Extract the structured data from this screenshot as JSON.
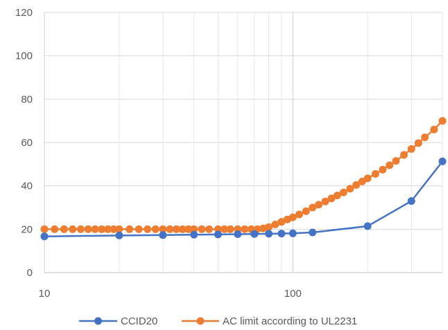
{
  "chart_data": {
    "type": "line",
    "xscale": "log",
    "xlim": [
      10,
      400
    ],
    "ylim": [
      0,
      120
    ],
    "yticks": [
      0,
      20,
      40,
      60,
      80,
      100,
      120
    ],
    "xticks": [
      {
        "value": 10,
        "label": "10"
      },
      {
        "value": 100,
        "label": "100"
      }
    ],
    "grid": true,
    "legend_position": "bottom",
    "title": "",
    "xlabel": "",
    "ylabel": "",
    "series": [
      {
        "name": "CCID20",
        "color": "#4472C4",
        "x": [
          10,
          20,
          30,
          40,
          50,
          60,
          70,
          80,
          90,
          100,
          120,
          200,
          300,
          400
        ],
        "y": [
          16.7,
          17.1,
          17.3,
          17.5,
          17.6,
          17.7,
          17.8,
          17.9,
          18.0,
          18.1,
          18.5,
          21.4,
          33.0,
          51.3
        ]
      },
      {
        "name": "AC limit according to UL2231",
        "color": "#ED7D31",
        "x": [
          10,
          11,
          12,
          13,
          14,
          15,
          16,
          17,
          18,
          19,
          20,
          22,
          24,
          26,
          28,
          30,
          32,
          34,
          36,
          38,
          40,
          43,
          46,
          50,
          53,
          56,
          60,
          64,
          68,
          72,
          76,
          80,
          85,
          90,
          95,
          100,
          106,
          113,
          120,
          127,
          135,
          143,
          151,
          160,
          170,
          180,
          190,
          200,
          215,
          230,
          245,
          260,
          280,
          300,
          320,
          340,
          370,
          400
        ],
        "y": [
          20,
          20,
          20,
          20,
          20,
          20,
          20,
          20,
          20,
          20,
          20,
          20,
          20,
          20,
          20,
          20,
          20,
          20,
          20,
          20,
          20,
          20,
          20,
          20,
          20,
          20,
          20,
          20,
          20,
          20,
          20.4,
          21.0,
          22.2,
          23.4,
          24.5,
          25.5,
          26.8,
          28.3,
          30.0,
          31.3,
          32.8,
          34.2,
          35.6,
          37.0,
          38.7,
          40.4,
          42.0,
          43.5,
          45.5,
          47.5,
          49.5,
          51.5,
          54.3,
          57.0,
          59.7,
          62.4,
          66.0,
          70.0
        ]
      }
    ]
  }
}
